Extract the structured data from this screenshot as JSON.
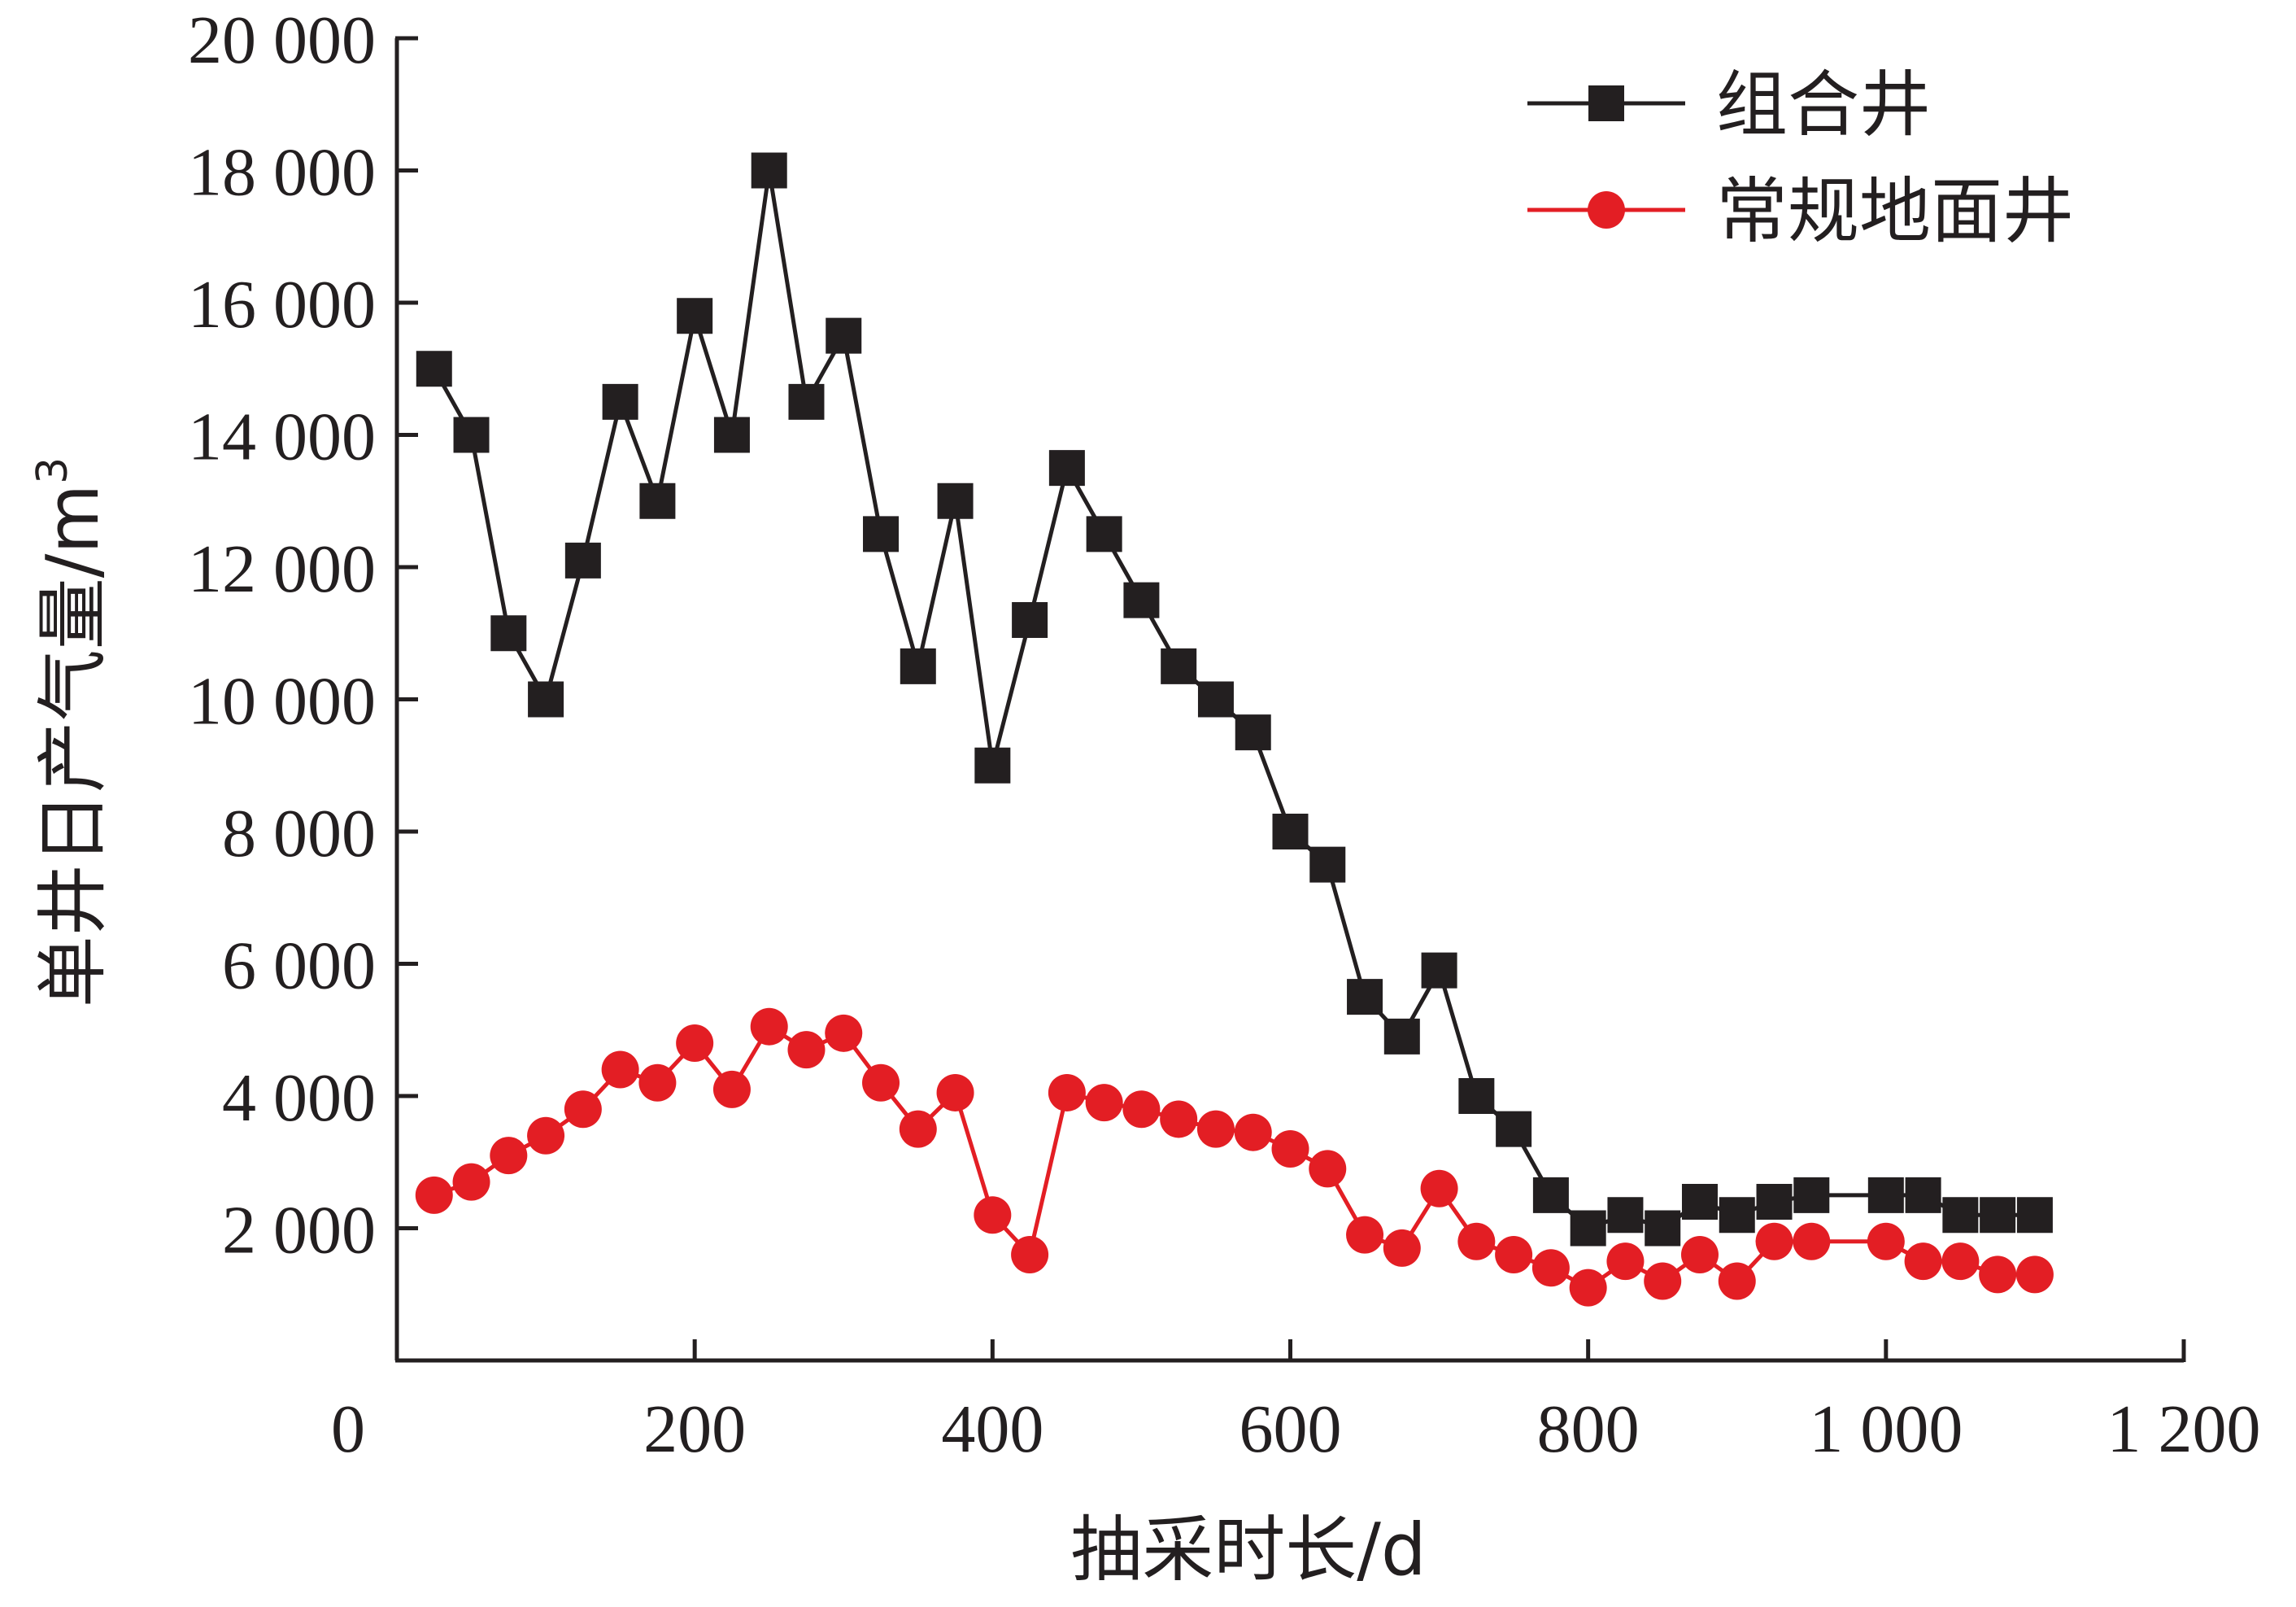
{
  "chart_data": {
    "type": "line",
    "xlabel": "抽采时长/d",
    "ylabel": "单井日产气量/m",
    "ylabel_sup": "3",
    "xlim": [
      0,
      1200
    ],
    "ylim": [
      0,
      20000
    ],
    "xticks": [
      0,
      200,
      400,
      600,
      800,
      1000,
      1200
    ],
    "xtick_labels": [
      "0",
      "200",
      "400",
      "600",
      "800",
      "1 000",
      "1 200"
    ],
    "yticks": [
      2000,
      4000,
      6000,
      8000,
      10000,
      12000,
      14000,
      16000,
      18000,
      20000
    ],
    "ytick_labels": [
      "2 000",
      "4 000",
      "6 000",
      "8 000",
      "10 000",
      "12 000",
      "14 000",
      "16 000",
      "18 000",
      "20 000"
    ],
    "legend_position": "top-right",
    "grid": false,
    "series": [
      {
        "name": "组合井",
        "color": "#231f20",
        "marker": "square",
        "x": [
          25,
          50,
          75,
          100,
          125,
          150,
          175,
          200,
          225,
          250,
          275,
          300,
          325,
          350,
          375,
          400,
          425,
          450,
          475,
          500,
          525,
          550,
          575,
          600,
          625,
          650,
          675,
          700,
          725,
          750,
          775,
          800,
          825,
          850,
          875,
          900,
          925,
          950,
          1000,
          1025,
          1050,
          1075,
          1100
        ],
        "y": [
          15000,
          14000,
          11000,
          10000,
          12100,
          14500,
          13000,
          15800,
          14000,
          18000,
          14500,
          15500,
          12500,
          10500,
          13000,
          9000,
          11200,
          13500,
          12500,
          11500,
          10500,
          10000,
          9500,
          8000,
          7500,
          5500,
          4900,
          5900,
          4000,
          3500,
          2500,
          2000,
          2200,
          2000,
          2400,
          2200,
          2400,
          2500,
          2500,
          2500,
          2200,
          2200,
          2200
        ]
      },
      {
        "name": "常规地面井",
        "color": "#e31e24",
        "marker": "circle",
        "x": [
          25,
          50,
          75,
          100,
          125,
          150,
          175,
          200,
          225,
          250,
          275,
          300,
          325,
          350,
          375,
          400,
          425,
          450,
          475,
          500,
          525,
          550,
          575,
          600,
          625,
          650,
          675,
          700,
          725,
          750,
          775,
          800,
          825,
          850,
          875,
          900,
          925,
          950,
          1000,
          1025,
          1050,
          1075,
          1100
        ],
        "y": [
          2500,
          2700,
          3100,
          3400,
          3800,
          4400,
          4200,
          4800,
          4100,
          5050,
          4700,
          4950,
          4200,
          3500,
          4050,
          2200,
          1600,
          4050,
          3900,
          3800,
          3650,
          3500,
          3450,
          3200,
          2900,
          1900,
          1700,
          2600,
          1800,
          1600,
          1400,
          1100,
          1500,
          1200,
          1600,
          1200,
          1800,
          1800,
          1800,
          1500,
          1500,
          1300,
          1300
        ]
      }
    ]
  }
}
